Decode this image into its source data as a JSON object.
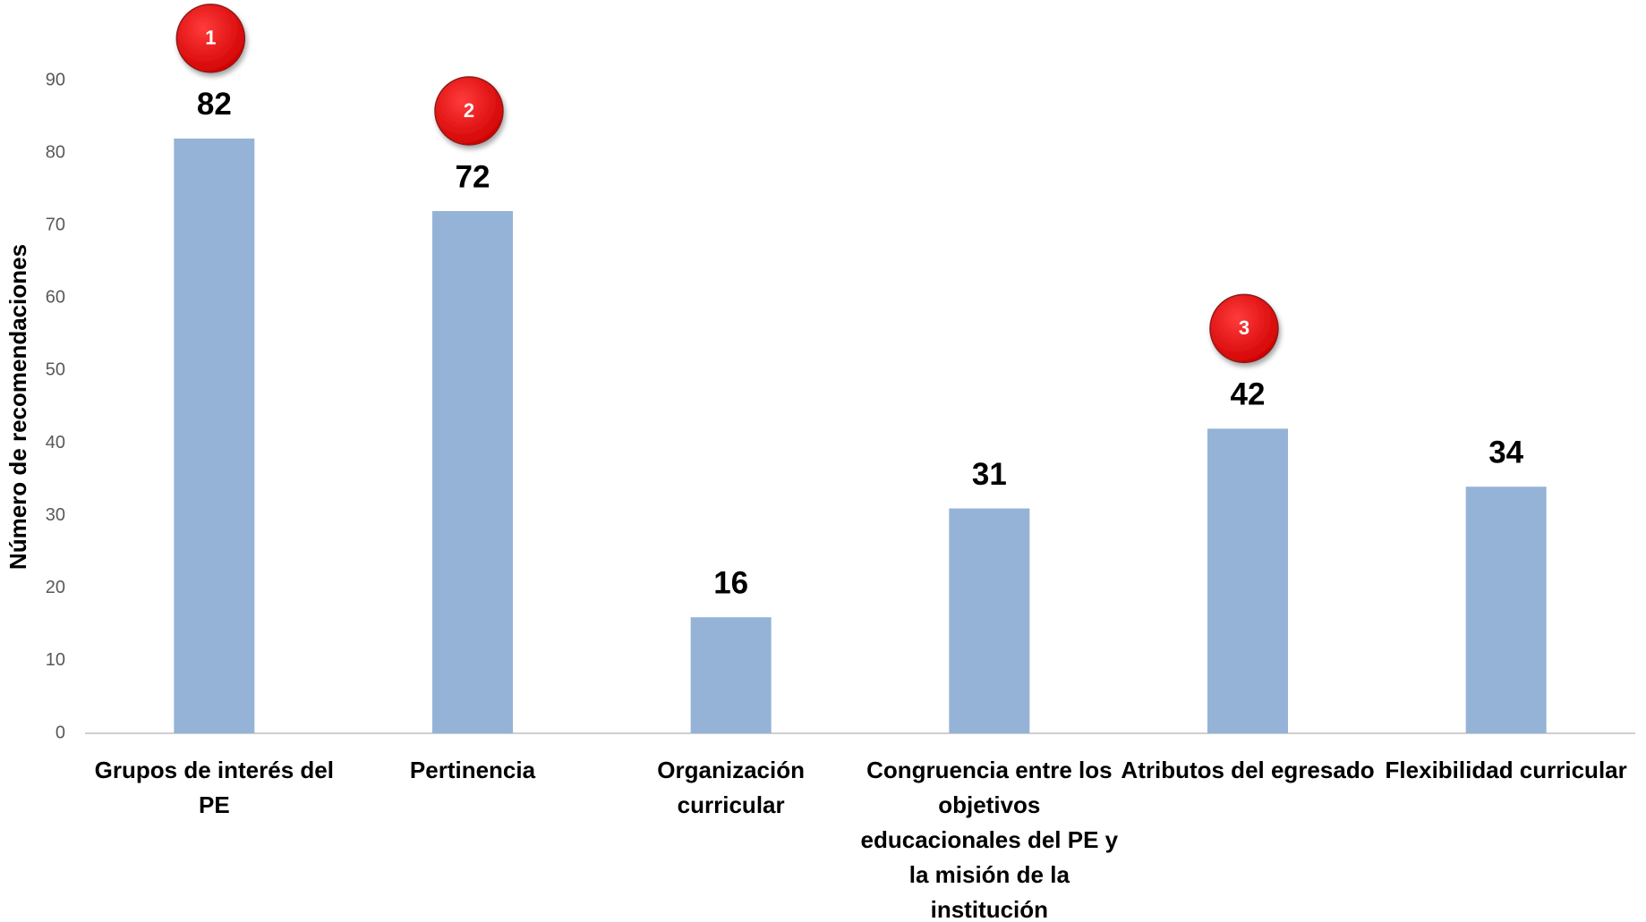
{
  "chart_data": {
    "type": "bar",
    "y_axis_label": "Número de recomendaciones",
    "categories": [
      "Grupos de interés del PE",
      "Pertinencia",
      "Organización curricular",
      "Congruencia entre los objetivos educacionales del PE y la misión de la institución",
      "Atributos del egresado",
      "Flexibilidad curricular"
    ],
    "values": [
      82,
      72,
      16,
      31,
      42,
      34
    ],
    "rank_badges": [
      1,
      2,
      null,
      null,
      3,
      null
    ],
    "color": "#95b3d7",
    "ylim": [
      0,
      90
    ],
    "yticks": [
      0,
      10,
      20,
      30,
      40,
      50,
      60,
      70,
      80,
      90
    ],
    "grid": false
  }
}
